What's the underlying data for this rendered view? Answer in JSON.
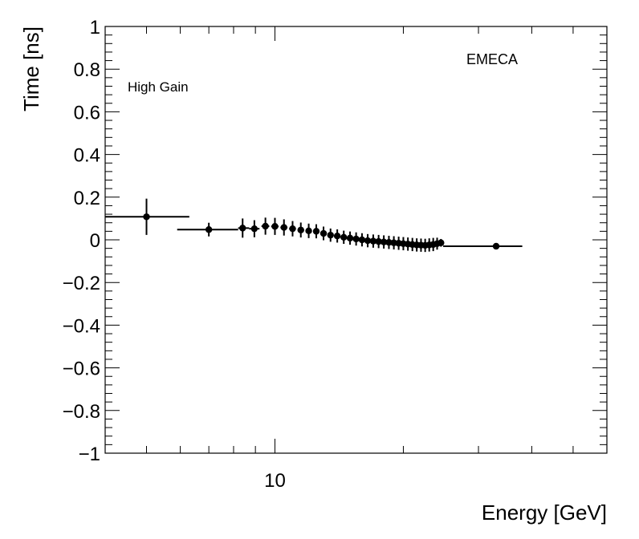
{
  "chart_data": {
    "type": "scatter",
    "xlabel": "Energy [GeV]",
    "ylabel": "Time [ns]",
    "xscale": "log",
    "xlim": [
      4.0,
      60.0
    ],
    "ylim": [
      -1,
      1
    ],
    "yticks": [
      {
        "value": 1,
        "label": "1"
      },
      {
        "value": 0.8,
        "label": "0.8"
      },
      {
        "value": 0.6,
        "label": "0.6"
      },
      {
        "value": 0.4,
        "label": "0.4"
      },
      {
        "value": 0.2,
        "label": "0.2"
      },
      {
        "value": 0,
        "label": "0"
      },
      {
        "value": -0.2,
        "label": "−0.2"
      },
      {
        "value": -0.4,
        "label": "−0.4"
      },
      {
        "value": -0.6,
        "label": "−0.6"
      },
      {
        "value": -0.8,
        "label": "−0.8"
      },
      {
        "value": -1,
        "label": "−1"
      }
    ],
    "xticks": [
      {
        "value": 10,
        "label": "10"
      }
    ],
    "annotations": {
      "gain": "High Gain",
      "region": "EMECA"
    },
    "grid": false,
    "marker_color": "#000000",
    "points": [
      {
        "x": 5.0,
        "xlo": 4.0,
        "xhi": 6.3,
        "y": 0.108,
        "yerr": 0.085
      },
      {
        "x": 7.0,
        "xlo": 5.9,
        "xhi": 8.2,
        "y": 0.048,
        "yerr": 0.032
      },
      {
        "x": 8.4,
        "xlo": 8.2,
        "xhi": 8.7,
        "y": 0.055,
        "yerr": 0.045
      },
      {
        "x": 8.95,
        "xlo": 8.7,
        "xhi": 9.2,
        "y": 0.052,
        "yerr": 0.04
      },
      {
        "x": 9.5,
        "xlo": 9.3,
        "xhi": 9.7,
        "y": 0.064,
        "yerr": 0.04
      },
      {
        "x": 10.0,
        "xlo": 9.8,
        "xhi": 10.2,
        "y": 0.063,
        "yerr": 0.04
      },
      {
        "x": 10.5,
        "xlo": 10.3,
        "xhi": 10.7,
        "y": 0.058,
        "yerr": 0.038
      },
      {
        "x": 11.0,
        "xlo": 10.8,
        "xhi": 11.2,
        "y": 0.052,
        "yerr": 0.036
      },
      {
        "x": 11.5,
        "xlo": 11.3,
        "xhi": 11.7,
        "y": 0.046,
        "yerr": 0.035
      },
      {
        "x": 12.0,
        "xlo": 11.8,
        "xhi": 12.2,
        "y": 0.042,
        "yerr": 0.034
      },
      {
        "x": 12.5,
        "xlo": 12.3,
        "xhi": 12.7,
        "y": 0.04,
        "yerr": 0.033
      },
      {
        "x": 13.0,
        "xlo": 12.8,
        "xhi": 13.2,
        "y": 0.03,
        "yerr": 0.032
      },
      {
        "x": 13.5,
        "xlo": 13.3,
        "xhi": 13.7,
        "y": 0.022,
        "yerr": 0.031
      },
      {
        "x": 14.0,
        "xlo": 13.8,
        "xhi": 14.2,
        "y": 0.018,
        "yerr": 0.031
      },
      {
        "x": 14.5,
        "xlo": 14.3,
        "xhi": 14.7,
        "y": 0.012,
        "yerr": 0.031
      },
      {
        "x": 15.0,
        "xlo": 14.8,
        "xhi": 15.2,
        "y": 0.008,
        "yerr": 0.031
      },
      {
        "x": 15.5,
        "xlo": 15.3,
        "xhi": 15.7,
        "y": 0.004,
        "yerr": 0.031
      },
      {
        "x": 16.0,
        "xlo": 15.8,
        "xhi": 16.2,
        "y": 0.0,
        "yerr": 0.031
      },
      {
        "x": 16.5,
        "xlo": 16.3,
        "xhi": 16.7,
        "y": -0.004,
        "yerr": 0.031
      },
      {
        "x": 17.0,
        "xlo": 16.8,
        "xhi": 17.2,
        "y": -0.006,
        "yerr": 0.031
      },
      {
        "x": 17.5,
        "xlo": 17.3,
        "xhi": 17.7,
        "y": -0.008,
        "yerr": 0.031
      },
      {
        "x": 18.0,
        "xlo": 17.8,
        "xhi": 18.2,
        "y": -0.01,
        "yerr": 0.031
      },
      {
        "x": 18.5,
        "xlo": 18.3,
        "xhi": 18.7,
        "y": -0.012,
        "yerr": 0.031
      },
      {
        "x": 19.0,
        "xlo": 18.8,
        "xhi": 19.2,
        "y": -0.014,
        "yerr": 0.031
      },
      {
        "x": 19.5,
        "xlo": 19.3,
        "xhi": 19.7,
        "y": -0.016,
        "yerr": 0.031
      },
      {
        "x": 20.0,
        "xlo": 19.8,
        "xhi": 20.2,
        "y": -0.018,
        "yerr": 0.031
      },
      {
        "x": 20.5,
        "xlo": 20.3,
        "xhi": 20.7,
        "y": -0.02,
        "yerr": 0.031
      },
      {
        "x": 21.0,
        "xlo": 20.8,
        "xhi": 21.2,
        "y": -0.022,
        "yerr": 0.031
      },
      {
        "x": 21.5,
        "xlo": 21.3,
        "xhi": 21.7,
        "y": -0.024,
        "yerr": 0.031
      },
      {
        "x": 22.0,
        "xlo": 21.8,
        "xhi": 22.2,
        "y": -0.025,
        "yerr": 0.031
      },
      {
        "x": 22.5,
        "xlo": 22.3,
        "xhi": 22.7,
        "y": -0.026,
        "yerr": 0.031
      },
      {
        "x": 23.0,
        "xlo": 22.8,
        "xhi": 23.2,
        "y": -0.024,
        "yerr": 0.031
      },
      {
        "x": 23.5,
        "xlo": 23.3,
        "xhi": 23.7,
        "y": -0.022,
        "yerr": 0.031
      },
      {
        "x": 24.0,
        "xlo": 23.8,
        "xhi": 24.2,
        "y": -0.018,
        "yerr": 0.028
      },
      {
        "x": 24.5,
        "xlo": 24.3,
        "xhi": 24.7,
        "y": -0.014,
        "yerr": 0.018
      },
      {
        "x": 33.0,
        "xlo": 24.8,
        "xhi": 38.0,
        "y": -0.03,
        "yerr": 0.0
      }
    ]
  }
}
